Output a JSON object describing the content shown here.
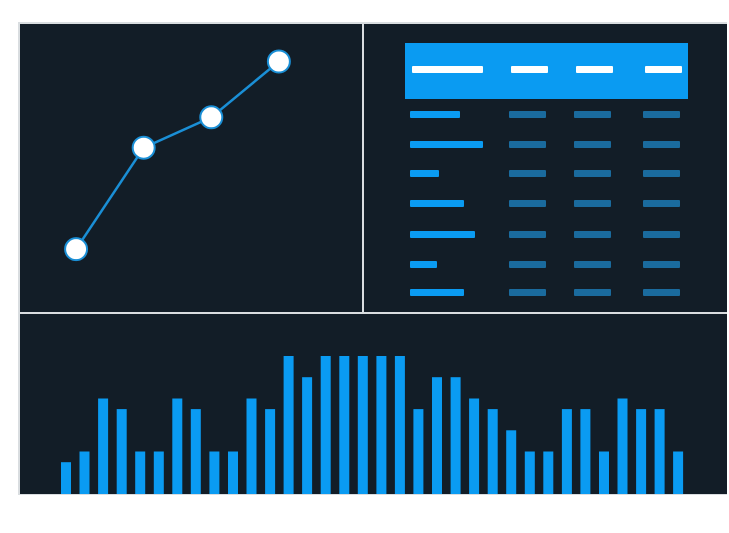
{
  "colors": {
    "background": "#121d27",
    "divider": "#d9dde0",
    "accent": "#0a9bf2",
    "muted_cell": "#1a6b9e",
    "line": "#1a8fd6",
    "marker_fill": "#ffffff"
  },
  "chart_data": [
    {
      "type": "line",
      "x": [
        1,
        2,
        3,
        4
      ],
      "values": [
        1.0,
        3.0,
        3.6,
        4.7
      ],
      "markers": true,
      "grid": false,
      "xlim": [
        0.2,
        5.2
      ],
      "ylim": [
        -0.2,
        5.4
      ]
    },
    {
      "type": "table",
      "columns": 4,
      "header_bar_fractions": [
        1.0,
        0.55,
        0.55,
        0.55
      ],
      "rows": [
        [
          0.69,
          1,
          1,
          1
        ],
        [
          1.0,
          1,
          1,
          1
        ],
        [
          0.4,
          1,
          1,
          1
        ],
        [
          0.74,
          1,
          1,
          1
        ],
        [
          0.89,
          1,
          1,
          1
        ],
        [
          0.37,
          1,
          1,
          1
        ],
        [
          0.74,
          1,
          1,
          1
        ]
      ]
    },
    {
      "type": "bar",
      "values": [
        3,
        4,
        9,
        8,
        4,
        4,
        9,
        8,
        4,
        4,
        9,
        8,
        13,
        11,
        13,
        13,
        13,
        13,
        13,
        8,
        11,
        11,
        9,
        8,
        6,
        4,
        4,
        8,
        8,
        4,
        9,
        8,
        8,
        4
      ],
      "ylim": [
        0,
        13
      ],
      "grid": false
    }
  ]
}
